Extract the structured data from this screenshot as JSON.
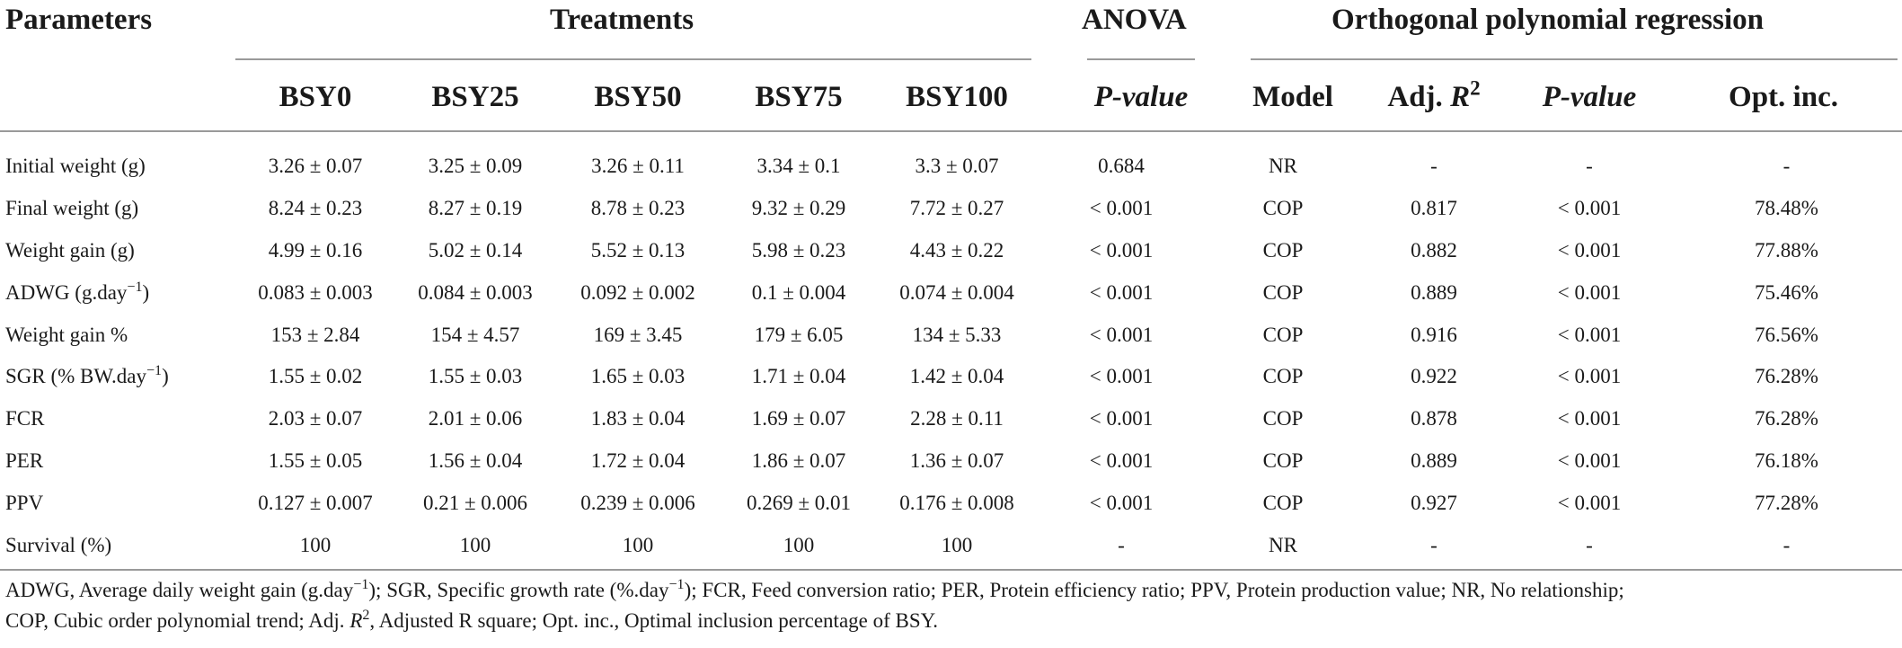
{
  "header": {
    "parameters": "Parameters",
    "treatments": "Treatments",
    "anova": "ANOVA",
    "regression": "Orthogonal polynomial regression",
    "columns": {
      "bsy0": "BSY0",
      "bsy25": "BSY25",
      "bsy50": "BSY50",
      "bsy75": "BSY75",
      "bsy100": "BSY100",
      "anova_p": "P-value",
      "model": "Model",
      "adj_r2_prefix": "Adj. ",
      "adj_r2_r": "R",
      "adj_r2_sup": "2",
      "reg_p": "P-value",
      "opt_inc": "Opt. inc."
    }
  },
  "rows": [
    {
      "param": "Initial weight (g)",
      "bsy0": "3.26 ± 0.07",
      "bsy25": "3.25 ± 0.09",
      "bsy50": "3.26 ± 0.11",
      "bsy75": "3.34 ± 0.1",
      "bsy100": "3.3 ± 0.07",
      "anova_p": "0.684",
      "model": "NR",
      "adj_r2": "-",
      "reg_p": "-",
      "opt_inc": "-"
    },
    {
      "param": "Final weight (g)",
      "bsy0": "8.24 ± 0.23",
      "bsy25": "8.27 ± 0.19",
      "bsy50": "8.78 ± 0.23",
      "bsy75": "9.32 ± 0.29",
      "bsy100": "7.72 ± 0.27",
      "anova_p": "< 0.001",
      "model": "COP",
      "adj_r2": "0.817",
      "reg_p": "< 0.001",
      "opt_inc": "78.48%"
    },
    {
      "param": "Weight gain (g)",
      "bsy0": "4.99 ± 0.16",
      "bsy25": "5.02 ± 0.14",
      "bsy50": "5.52 ± 0.13",
      "bsy75": "5.98 ± 0.23",
      "bsy100": "4.43 ± 0.22",
      "anova_p": "< 0.001",
      "model": "COP",
      "adj_r2": "0.882",
      "reg_p": "< 0.001",
      "opt_inc": "77.88%"
    },
    {
      "param_main": "ADWG (g.day",
      "param_sup": "−1",
      "param_end": ")",
      "bsy0": "0.083 ± 0.003",
      "bsy25": "0.084 ± 0.003",
      "bsy50": "0.092 ± 0.002",
      "bsy75": "0.1 ± 0.004",
      "bsy100": "0.074 ± 0.004",
      "anova_p": "< 0.001",
      "model": "COP",
      "adj_r2": "0.889",
      "reg_p": "< 0.001",
      "opt_inc": "75.46%"
    },
    {
      "param": "Weight gain %",
      "bsy0": "153 ± 2.84",
      "bsy25": "154 ± 4.57",
      "bsy50": "169 ± 3.45",
      "bsy75": "179 ± 6.05",
      "bsy100": "134 ± 5.33",
      "anova_p": "< 0.001",
      "model": "COP",
      "adj_r2": "0.916",
      "reg_p": "< 0.001",
      "opt_inc": "76.56%"
    },
    {
      "param_main": "SGR (% BW.day",
      "param_sup": "−1",
      "param_end": ")",
      "bsy0": "1.55 ± 0.02",
      "bsy25": "1.55 ± 0.03",
      "bsy50": "1.65 ± 0.03",
      "bsy75": "1.71 ± 0.04",
      "bsy100": "1.42 ± 0.04",
      "anova_p": "< 0.001",
      "model": "COP",
      "adj_r2": "0.922",
      "reg_p": "< 0.001",
      "opt_inc": "76.28%"
    },
    {
      "param": "FCR",
      "bsy0": "2.03 ± 0.07",
      "bsy25": "2.01 ± 0.06",
      "bsy50": "1.83 ± 0.04",
      "bsy75": "1.69 ± 0.07",
      "bsy100": "2.28 ± 0.11",
      "anova_p": "< 0.001",
      "model": "COP",
      "adj_r2": "0.878",
      "reg_p": "< 0.001",
      "opt_inc": "76.28%"
    },
    {
      "param": "PER",
      "bsy0": "1.55 ± 0.05",
      "bsy25": "1.56 ± 0.04",
      "bsy50": "1.72 ± 0.04",
      "bsy75": "1.86 ± 0.07",
      "bsy100": "1.36 ± 0.07",
      "anova_p": "< 0.001",
      "model": "COP",
      "adj_r2": "0.889",
      "reg_p": "< 0.001",
      "opt_inc": "76.18%"
    },
    {
      "param": "PPV",
      "bsy0": "0.127 ± 0.007",
      "bsy25": "0.21 ± 0.006",
      "bsy50": "0.239 ± 0.006",
      "bsy75": "0.269 ± 0.01",
      "bsy100": "0.176 ± 0.008",
      "anova_p": "< 0.001",
      "model": "COP",
      "adj_r2": "0.927",
      "reg_p": "< 0.001",
      "opt_inc": "77.28%"
    },
    {
      "param": "Survival (%)",
      "bsy0": "100",
      "bsy25": "100",
      "bsy50": "100",
      "bsy75": "100",
      "bsy100": "100",
      "anova_p": "-",
      "model": "NR",
      "adj_r2": "-",
      "reg_p": "-",
      "opt_inc": "-"
    }
  ],
  "footnote": {
    "p1": "ADWG, Average daily weight gain (g.day",
    "sup1": "−1",
    "p2": "); SGR, Specific growth rate (%.day",
    "sup2": "−1",
    "p3": "); FCR, Feed conversion ratio; PER, Protein efficiency ratio; PPV, Protein production value; NR, No relationship;",
    "p4": "COP, Cubic order polynomial trend; Adj. ",
    "r": "R",
    "sup3": "2",
    "p5": ", Adjusted R square; Opt. inc., Optimal inclusion percentage of BSY."
  }
}
